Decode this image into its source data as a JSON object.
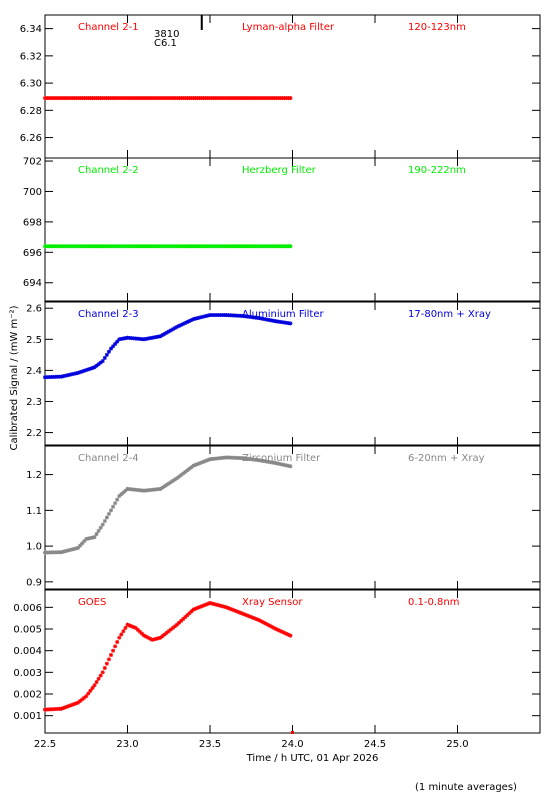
{
  "chart_data": {
    "type": "scatter",
    "xlabel": "Time / h UTC, 01 Apr 2026",
    "ylabel": "Calibrated Signal / (mW m⁻²)",
    "xlim": [
      22.5,
      25.5
    ],
    "xticks": [
      22.5,
      23.0,
      23.5,
      24.0,
      24.5,
      25.0
    ],
    "xticklabels": [
      "22.5",
      "23.0",
      "23.5",
      "24.0",
      "24.5",
      "25.0"
    ],
    "footnote": "(1 minute averages)",
    "annotation": {
      "text1": "3810",
      "text2": "C6.1",
      "x": 23.45
    },
    "panels": [
      {
        "name": "Channel 2-1",
        "filter": "Lyman-alpha Filter",
        "band": "120-123nm",
        "color": "#ff0000",
        "ylim": [
          6.245,
          6.35
        ],
        "yticks": [
          6.26,
          6.28,
          6.3,
          6.32,
          6.34
        ],
        "yticklabels": [
          "6.26",
          "6.28",
          "6.30",
          "6.32",
          "6.34"
        ],
        "points": [
          [
            22.5,
            6.289
          ],
          [
            24.0,
            6.289
          ]
        ]
      },
      {
        "name": "Channel 2-2",
        "filter": "Herzberg Filter",
        "band": "190-222nm",
        "color": "#00ee00",
        "ylim": [
          692.8,
          702.2
        ],
        "yticks": [
          694,
          696,
          698,
          700,
          702
        ],
        "yticklabels": [
          "694",
          "696",
          "698",
          "700",
          "702"
        ],
        "points": [
          [
            22.5,
            696.4
          ],
          [
            24.0,
            696.4
          ]
        ]
      },
      {
        "name": "Channel 2-3",
        "filter": "Aluminium Filter",
        "band": "17-80nm + Xray",
        "color": "#0000dd",
        "ylim": [
          2.16,
          2.62
        ],
        "yticks": [
          2.2,
          2.3,
          2.4,
          2.5,
          2.6
        ],
        "yticklabels": [
          "2.2",
          "2.3",
          "2.4",
          "2.5",
          "2.6"
        ],
        "points": [
          [
            22.5,
            2.378
          ],
          [
            22.6,
            2.38
          ],
          [
            22.7,
            2.392
          ],
          [
            22.8,
            2.41
          ],
          [
            22.85,
            2.43
          ],
          [
            22.9,
            2.47
          ],
          [
            22.95,
            2.5
          ],
          [
            23.0,
            2.505
          ],
          [
            23.1,
            2.5
          ],
          [
            23.2,
            2.51
          ],
          [
            23.3,
            2.54
          ],
          [
            23.4,
            2.565
          ],
          [
            23.5,
            2.578
          ],
          [
            23.6,
            2.578
          ],
          [
            23.7,
            2.575
          ],
          [
            23.8,
            2.568
          ],
          [
            23.9,
            2.558
          ],
          [
            24.0,
            2.55
          ]
        ]
      },
      {
        "name": "Channel 2-4",
        "filter": "Zirconium Filter",
        "band": "6-20nm + Xray",
        "color": "#888888",
        "ylim": [
          0.88,
          1.28
        ],
        "yticks": [
          0.9,
          1.0,
          1.1,
          1.2
        ],
        "yticklabels": [
          "0.9",
          "1.0",
          "1.1",
          "1.2"
        ],
        "points": [
          [
            22.5,
            0.982
          ],
          [
            22.6,
            0.983
          ],
          [
            22.7,
            0.995
          ],
          [
            22.75,
            1.02
          ],
          [
            22.8,
            1.025
          ],
          [
            22.85,
            1.06
          ],
          [
            22.9,
            1.1
          ],
          [
            22.95,
            1.14
          ],
          [
            23.0,
            1.16
          ],
          [
            23.1,
            1.155
          ],
          [
            23.2,
            1.16
          ],
          [
            23.3,
            1.19
          ],
          [
            23.4,
            1.225
          ],
          [
            23.5,
            1.243
          ],
          [
            23.6,
            1.248
          ],
          [
            23.7,
            1.246
          ],
          [
            23.8,
            1.24
          ],
          [
            23.9,
            1.232
          ],
          [
            24.0,
            1.222
          ]
        ]
      },
      {
        "name": "GOES",
        "filter": "Xray Sensor",
        "band": "0.1-0.8nm",
        "color": "#ff0000",
        "ylim": [
          0.0002,
          0.0068
        ],
        "yticks": [
          0.001,
          0.002,
          0.003,
          0.004,
          0.005,
          0.006
        ],
        "yticklabels": [
          "0.001",
          "0.002",
          "0.003",
          "0.004",
          "0.005",
          "0.006"
        ],
        "points": [
          [
            22.5,
            0.00128
          ],
          [
            22.6,
            0.00132
          ],
          [
            22.7,
            0.0016
          ],
          [
            22.75,
            0.0019
          ],
          [
            22.8,
            0.0024
          ],
          [
            22.85,
            0.003
          ],
          [
            22.9,
            0.0038
          ],
          [
            22.95,
            0.0046
          ],
          [
            23.0,
            0.0052
          ],
          [
            23.05,
            0.00505
          ],
          [
            23.1,
            0.0047
          ],
          [
            23.15,
            0.0045
          ],
          [
            23.2,
            0.0046
          ],
          [
            23.3,
            0.0052
          ],
          [
            23.4,
            0.0059
          ],
          [
            23.5,
            0.0062
          ],
          [
            23.6,
            0.006
          ],
          [
            23.7,
            0.0057
          ],
          [
            23.8,
            0.0054
          ],
          [
            23.9,
            0.005
          ],
          [
            24.0,
            0.00465
          ]
        ]
      }
    ]
  }
}
